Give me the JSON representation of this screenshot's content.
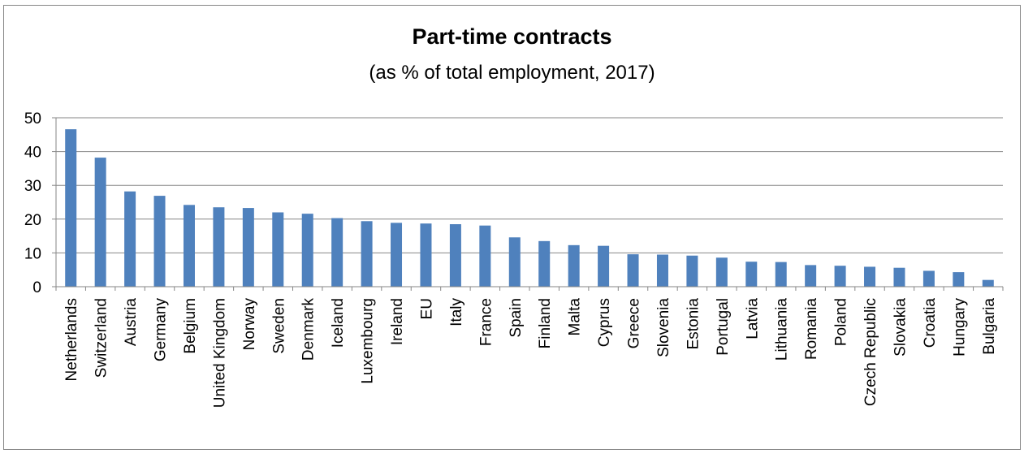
{
  "chart_data": {
    "type": "bar",
    "title": "Part-time contracts",
    "subtitle": "(as % of total employment, 2017)",
    "xlabel": "",
    "ylabel": "",
    "ylim": [
      0,
      50
    ],
    "yticks": [
      0,
      10,
      20,
      30,
      40,
      50
    ],
    "grid": true,
    "legend": "none",
    "bar_color": "#4f81bd",
    "grid_color": "#868686",
    "categories": [
      "Netherlands",
      "Switzerland",
      "Austria",
      "Germany",
      "Belgium",
      "United Kingdom",
      "Norway",
      "Sweden",
      "Denmark",
      "Iceland",
      "Luxembourg",
      "Ireland",
      "EU",
      "Italy",
      "France",
      "Spain",
      "Finland",
      "Malta",
      "Cyprus",
      "Greece",
      "Slovenia",
      "Estonia",
      "Portugal",
      "Latvia",
      "Lithuania",
      "Romania",
      "Poland",
      "Czech Republic",
      "Slovakia",
      "Croatia",
      "Hungary",
      "Bulgaria"
    ],
    "values": [
      46.6,
      38.2,
      28.2,
      26.9,
      24.2,
      23.5,
      23.3,
      22.0,
      21.6,
      20.3,
      19.4,
      18.9,
      18.7,
      18.5,
      18.1,
      14.6,
      13.5,
      12.3,
      12.1,
      9.6,
      9.5,
      9.2,
      8.6,
      7.4,
      7.3,
      6.4,
      6.2,
      5.9,
      5.6,
      4.7,
      4.3,
      2.0
    ]
  }
}
